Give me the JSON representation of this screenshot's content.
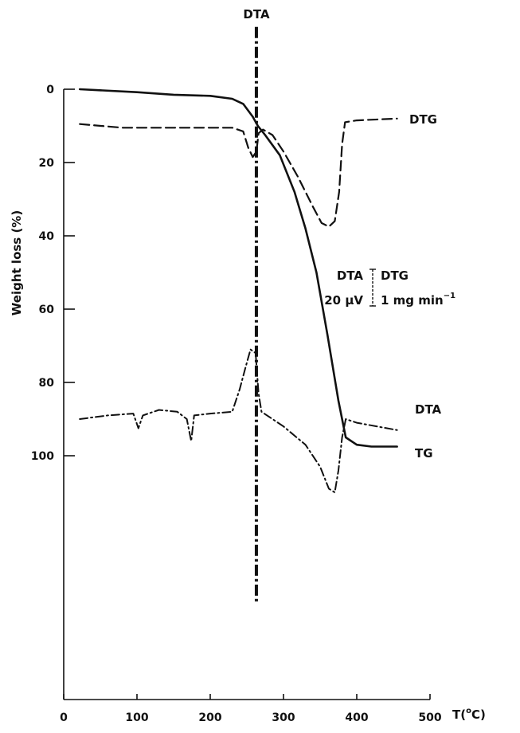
{
  "chart_data": {
    "type": "line",
    "title": "",
    "xlabel": "T(°C)",
    "x_label_parts": {
      "prefix": "T(",
      "superscript": "o",
      "suffix": "C)"
    },
    "ylabel": "Weight loss (%)",
    "xlim": [
      0,
      500
    ],
    "ylim": [
      0,
      150
    ],
    "y_inverted": true,
    "grid": false,
    "x_ticks": [
      0,
      100,
      200,
      300,
      400,
      500
    ],
    "x_tick_labels": [
      "0",
      "100",
      "200",
      "300",
      "400",
      "500"
    ],
    "y_ticks": [
      0,
      20,
      40,
      60,
      80,
      100
    ],
    "y_tick_labels": [
      "0",
      "20",
      "40",
      "60",
      "80",
      "100"
    ],
    "series": [
      {
        "name": "TG",
        "style": "solid",
        "points": [
          [
            22,
            0
          ],
          [
            100,
            0.8
          ],
          [
            150,
            1.5
          ],
          [
            200,
            1.8
          ],
          [
            230,
            2.6
          ],
          [
            245,
            4
          ],
          [
            258,
            7.5
          ],
          [
            265,
            10
          ],
          [
            275,
            12.5
          ],
          [
            295,
            18
          ],
          [
            315,
            28
          ],
          [
            330,
            38
          ],
          [
            345,
            50
          ],
          [
            360,
            67
          ],
          [
            375,
            85
          ],
          [
            385,
            95
          ],
          [
            400,
            97
          ],
          [
            420,
            97.5
          ],
          [
            455,
            97.5
          ]
        ]
      },
      {
        "name": "DTG",
        "style": "dashed",
        "points": [
          [
            22,
            9.5
          ],
          [
            80,
            10.5
          ],
          [
            150,
            10.5
          ],
          [
            230,
            10.5
          ],
          [
            245,
            11.5
          ],
          [
            252,
            16
          ],
          [
            258,
            18.5
          ],
          [
            263,
            17
          ],
          [
            266,
            12
          ],
          [
            272,
            11
          ],
          [
            285,
            12.5
          ],
          [
            300,
            17
          ],
          [
            320,
            24
          ],
          [
            340,
            32
          ],
          [
            352,
            36.5
          ],
          [
            362,
            37.5
          ],
          [
            370,
            36
          ],
          [
            376,
            28
          ],
          [
            380,
            15
          ],
          [
            384,
            9
          ],
          [
            400,
            8.5
          ],
          [
            455,
            8
          ]
        ]
      },
      {
        "name": "DTA",
        "style": "dash-dot",
        "points": [
          [
            22,
            90
          ],
          [
            60,
            89
          ],
          [
            95,
            88.5
          ],
          [
            102,
            92.5
          ],
          [
            108,
            89
          ],
          [
            130,
            87.5
          ],
          [
            155,
            88
          ],
          [
            168,
            90
          ],
          [
            174,
            96
          ],
          [
            178,
            89
          ],
          [
            200,
            88.5
          ],
          [
            230,
            88
          ],
          [
            240,
            82
          ],
          [
            248,
            76
          ],
          [
            255,
            71
          ],
          [
            262,
            72
          ],
          [
            266,
            83
          ],
          [
            270,
            88
          ],
          [
            300,
            92
          ],
          [
            330,
            97
          ],
          [
            350,
            103
          ],
          [
            362,
            109
          ],
          [
            370,
            110
          ],
          [
            375,
            104
          ],
          [
            380,
            95
          ],
          [
            385,
            90
          ],
          [
            400,
            91
          ],
          [
            455,
            93
          ]
        ]
      }
    ],
    "marker_line": {
      "label": "DTA",
      "x": 263,
      "y_top": -17,
      "y_bottom": 140
    },
    "scale_legend": {
      "left_top": "DTA",
      "left_bottom": "20 μV",
      "right_top": "DTG",
      "right_bottom_main": "1 mg min",
      "right_bottom_sup": "−1"
    },
    "curve_labels": {
      "dtg": "DTG",
      "dta": "DTA",
      "tg": "TG"
    }
  }
}
